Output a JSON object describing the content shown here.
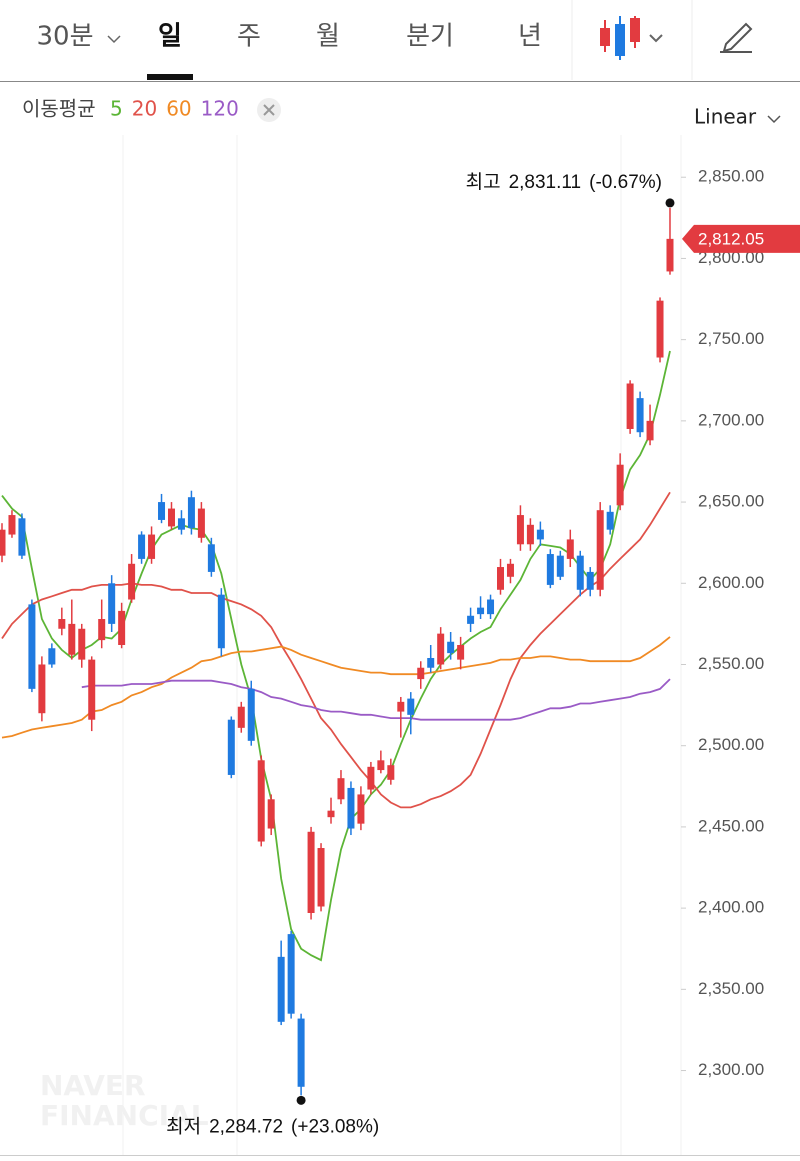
{
  "tabs": {
    "items": [
      "30분",
      "일",
      "주",
      "월",
      "분기",
      "년"
    ],
    "selected": 1
  },
  "legend_label": "이동평균",
  "scale_label": "Linear",
  "watermark": [
    "NAVER",
    "FINANCIAL"
  ],
  "chart_data": {
    "type": "candlestick",
    "up_color": "#e23b40",
    "down_color": "#1f7ae0",
    "ylim": [
      2248,
      2876
    ],
    "yticks": [
      {
        "value": 2300,
        "label": "2,300.00"
      },
      {
        "value": 2350,
        "label": "2,350.00"
      },
      {
        "value": 2400,
        "label": "2,400.00"
      },
      {
        "value": 2450,
        "label": "2,450.00"
      },
      {
        "value": 2500,
        "label": "2,500.00"
      },
      {
        "value": 2550,
        "label": "2,550.00"
      },
      {
        "value": 2600,
        "label": "2,600.00"
      },
      {
        "value": 2650,
        "label": "2,650.00"
      },
      {
        "value": 2700,
        "label": "2,700.00"
      },
      {
        "value": 2750,
        "label": "2,750.00"
      },
      {
        "value": 2800,
        "label": "2,800.00"
      },
      {
        "value": 2850,
        "label": "2,850.00"
      }
    ],
    "candles": {
      "open": [
        2617,
        2630,
        2640,
        2587,
        2520,
        2560,
        2572,
        2556,
        2553,
        2516,
        2565,
        2600,
        2562,
        2590,
        2630,
        2615,
        2650,
        2635,
        2640,
        2653,
        2628,
        2624,
        2593,
        2516,
        2511,
        2535,
        2441,
        2449,
        2370,
        2384,
        2332,
        2397,
        2401,
        2456,
        2467,
        2474,
        2452,
        2473,
        2485,
        2479,
        2521,
        2529,
        2541,
        2554,
        2550,
        2564,
        2553,
        2580,
        2585,
        2590,
        2596,
        2604,
        2624,
        2624,
        2633,
        2618,
        2617,
        2615,
        2617,
        2607,
        2596,
        2644,
        2648,
        2695,
        2714,
        2688,
        2739,
        2792
      ],
      "high": [
        2637,
        2645,
        2643,
        2590,
        2555,
        2563,
        2585,
        2590,
        2575,
        2555,
        2590,
        2605,
        2588,
        2618,
        2632,
        2635,
        2655,
        2650,
        2645,
        2657,
        2650,
        2628,
        2597,
        2518,
        2527,
        2540,
        2494,
        2470,
        2380,
        2386,
        2335,
        2450,
        2440,
        2468,
        2485,
        2478,
        2475,
        2490,
        2497,
        2492,
        2530,
        2533,
        2552,
        2562,
        2573,
        2570,
        2567,
        2585,
        2592,
        2593,
        2615,
        2615,
        2648,
        2640,
        2638,
        2621,
        2620,
        2633,
        2620,
        2610,
        2650,
        2648,
        2680,
        2725,
        2718,
        2710,
        2776,
        2831.11
      ],
      "low": [
        2613,
        2628,
        2615,
        2533,
        2515,
        2548,
        2568,
        2553,
        2548,
        2509,
        2560,
        2570,
        2560,
        2588,
        2612,
        2612,
        2637,
        2633,
        2630,
        2630,
        2625,
        2604,
        2555,
        2480,
        2508,
        2500,
        2438,
        2445,
        2328,
        2332,
        2284.72,
        2393,
        2398,
        2452,
        2464,
        2445,
        2448,
        2470,
        2483,
        2476,
        2505,
        2507,
        2535,
        2545,
        2547,
        2553,
        2547,
        2570,
        2578,
        2578,
        2593,
        2600,
        2620,
        2620,
        2623,
        2597,
        2602,
        2610,
        2592,
        2592,
        2592,
        2630,
        2645,
        2692,
        2690,
        2685,
        2736,
        2790
      ],
      "close": [
        2633,
        2642,
        2617,
        2535,
        2550,
        2550,
        2578,
        2575,
        2572,
        2553,
        2578,
        2575,
        2583,
        2612,
        2615,
        2630,
        2639,
        2646,
        2633,
        2634,
        2646,
        2607,
        2560,
        2482,
        2524,
        2503,
        2491,
        2467,
        2330,
        2335,
        2290,
        2447,
        2437,
        2460,
        2480,
        2449,
        2470,
        2487,
        2491,
        2488,
        2527,
        2519,
        2548,
        2548,
        2569,
        2557,
        2562,
        2575,
        2581,
        2581,
        2610,
        2612,
        2642,
        2636,
        2627,
        2599,
        2604,
        2627,
        2596,
        2596,
        2645,
        2633,
        2673,
        2723,
        2693,
        2700,
        2774,
        2812.05
      ]
    },
    "moving_averages": [
      {
        "name": "5",
        "color": "#5cb536",
        "values": [
          2654,
          2646,
          2641,
          2609,
          2578,
          2566,
          2559,
          2554,
          2559,
          2562,
          2567,
          2566,
          2572,
          2590,
          2606,
          2621,
          2630,
          2633,
          2636,
          2634,
          2633,
          2624,
          2606,
          2578,
          2550,
          2529,
          2492,
          2467,
          2418,
          2387,
          2375,
          2371,
          2368,
          2405,
          2436,
          2455,
          2461,
          2470,
          2476,
          2485,
          2501,
          2516,
          2529,
          2541,
          2550,
          2556,
          2561,
          2566,
          2570,
          2573,
          2584,
          2593,
          2602,
          2615,
          2624,
          2623,
          2622,
          2618,
          2610,
          2602,
          2609,
          2624,
          2652,
          2670,
          2679,
          2692,
          2716,
          2743
        ]
      },
      {
        "name": "20",
        "color": "#e0524a",
        "values": [
          2566,
          2575,
          2581,
          2587,
          2590,
          2592,
          2594,
          2596,
          2596,
          2598,
          2599,
          2599,
          2599,
          2600,
          2599,
          2599,
          2598,
          2596,
          2596,
          2594,
          2594,
          2594,
          2591,
          2589,
          2587,
          2584,
          2580,
          2573,
          2562,
          2552,
          2541,
          2529,
          2517,
          2510,
          2501,
          2493,
          2485,
          2478,
          2470,
          2465,
          2462,
          2462,
          2464,
          2467,
          2469,
          2472,
          2476,
          2482,
          2495,
          2510,
          2525,
          2541,
          2554,
          2562,
          2569,
          2575,
          2581,
          2587,
          2593,
          2598,
          2602,
          2609,
          2615,
          2621,
          2627,
          2636,
          2646,
          2656
        ]
      },
      {
        "name": "60",
        "color": "#f08a24",
        "values": [
          2505,
          2506,
          2508,
          2510,
          2511,
          2512,
          2513,
          2514,
          2516,
          2521,
          2522,
          2525,
          2527,
          2531,
          2533,
          2536,
          2538,
          2542,
          2545,
          2548,
          2552,
          2553,
          2555,
          2557,
          2558,
          2558,
          2559,
          2560,
          2561,
          2559,
          2556,
          2554,
          2552,
          2550,
          2548,
          2547,
          2546,
          2545,
          2545,
          2544,
          2544,
          2544,
          2544,
          2545,
          2546,
          2547,
          2548,
          2549,
          2550,
          2551,
          2553,
          2553,
          2554,
          2554,
          2555,
          2555,
          2554,
          2553,
          2553,
          2552,
          2552,
          2552,
          2552,
          2552,
          2554,
          2558,
          2562,
          2567
        ]
      },
      {
        "name": "120",
        "color": "#9a5bc6",
        "values": [
          null,
          null,
          null,
          null,
          null,
          null,
          null,
          null,
          2536,
          2537,
          2537,
          2537,
          2537,
          2538,
          2538,
          2538,
          2539,
          2540,
          2540,
          2540,
          2540,
          2540,
          2539,
          2538,
          2536,
          2535,
          2533,
          2530,
          2529,
          2527,
          2525,
          2524,
          2522,
          2521,
          2521,
          2520,
          2519,
          2519,
          2518,
          2517,
          2517,
          2517,
          2516,
          2516,
          2516,
          2516,
          2516,
          2516,
          2516,
          2516,
          2516,
          2516,
          2517,
          2519,
          2521,
          2523,
          2523,
          2524,
          2526,
          2526,
          2527,
          2528,
          2529,
          2530,
          2532,
          2533,
          2535,
          2541
        ]
      }
    ],
    "current_price": {
      "value": 2812.05,
      "label": "2,812.05"
    },
    "annotations": [
      {
        "label": "최고",
        "value": 2831.11,
        "value_label": "2,831.11",
        "change": "(-0.67%)"
      },
      {
        "label": "최저",
        "value": 2284.72,
        "value_label": "2,284.72",
        "change": "(+23.08%)"
      }
    ]
  }
}
